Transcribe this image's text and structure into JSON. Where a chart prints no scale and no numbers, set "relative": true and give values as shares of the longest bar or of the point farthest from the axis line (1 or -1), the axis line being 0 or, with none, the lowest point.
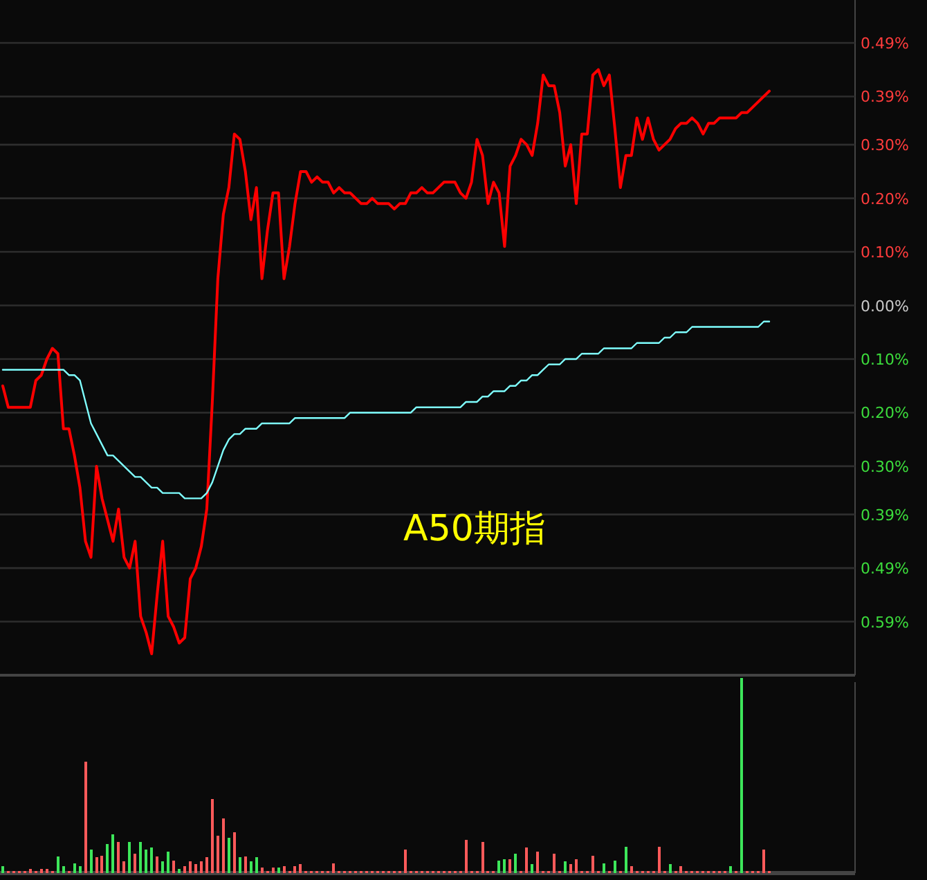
{
  "chart_data": [
    {
      "type": "line",
      "annotations": [
        "A50期指"
      ],
      "ylim": [
        -0.69,
        0.57
      ],
      "categories": [
        null,
        null,
        null,
        null,
        null,
        null,
        null,
        null,
        null,
        null,
        null,
        null,
        null,
        null,
        null,
        null,
        null,
        null,
        null,
        null,
        null,
        null,
        null,
        null,
        null,
        null,
        null,
        null,
        null,
        null,
        null,
        null,
        null,
        null,
        null,
        null,
        null,
        null,
        null,
        null,
        null,
        null,
        null,
        null,
        null,
        null,
        null,
        null,
        null,
        null,
        null,
        null,
        null,
        null,
        null,
        null,
        null,
        null,
        null,
        null,
        null,
        null,
        null,
        null,
        null,
        null,
        null,
        null,
        null,
        null,
        null,
        null,
        null,
        null,
        null,
        null,
        null,
        null,
        null,
        null,
        null,
        null,
        null,
        null,
        null,
        null,
        null,
        null,
        null,
        null,
        null,
        null,
        null,
        null,
        null,
        null,
        null,
        null,
        null,
        null,
        null,
        null,
        null,
        null,
        null,
        null,
        null,
        null,
        null,
        null,
        null,
        null,
        null,
        null,
        null,
        null,
        null,
        null,
        null,
        null,
        null,
        null,
        null,
        null,
        null,
        null,
        null,
        null,
        null,
        null,
        null,
        null,
        null,
        null,
        null,
        null,
        null,
        null,
        null,
        null
      ],
      "yticks": [
        {
          "value": 0.49,
          "label": "0.49%"
        },
        {
          "value": 0.39,
          "label": "0.39%"
        },
        {
          "value": 0.3,
          "label": "0.30%"
        },
        {
          "value": 0.2,
          "label": "0.20%"
        },
        {
          "value": 0.1,
          "label": "0.10%"
        },
        {
          "value": 0,
          "label": "0.00%"
        },
        {
          "value": -0.1,
          "label": "0.10%"
        },
        {
          "value": -0.2,
          "label": "0.20%"
        },
        {
          "value": -0.3,
          "label": "0.30%"
        },
        {
          "value": -0.39,
          "label": "0.39%"
        },
        {
          "value": -0.49,
          "label": "0.49%"
        },
        {
          "value": -0.59,
          "label": "0.59%"
        }
      ],
      "grid": "y",
      "tick_labels": "y",
      "line_style": "solid",
      "series": [
        {
          "color": "#ff0000",
          "values": [
            -0.15,
            -0.19,
            -0.19,
            -0.19,
            -0.19,
            -0.19,
            -0.14,
            -0.13,
            -0.1,
            -0.08,
            -0.09,
            -0.23,
            -0.23,
            -0.28,
            -0.34,
            -0.44,
            -0.47,
            -0.3,
            -0.36,
            -0.4,
            -0.44,
            -0.38,
            -0.47,
            -0.49,
            -0.44,
            -0.58,
            -0.61,
            -0.65,
            -0.54,
            -0.44,
            -0.58,
            -0.6,
            -0.63,
            -0.62,
            -0.51,
            -0.49,
            -0.45,
            -0.38,
            -0.18,
            0.05,
            0.17,
            0.22,
            0.32,
            0.31,
            0.25,
            0.16,
            0.22,
            0.05,
            0.14,
            0.21,
            0.21,
            0.05,
            0.11,
            0.19,
            0.25,
            0.25,
            0.23,
            0.24,
            0.23,
            0.23,
            0.21,
            0.22,
            0.21,
            0.21,
            0.2,
            0.19,
            0.19,
            0.2,
            0.19,
            0.19,
            0.19,
            0.18,
            0.19,
            0.19,
            0.21,
            0.21,
            0.22,
            0.21,
            0.21,
            0.22,
            0.23,
            0.23,
            0.23,
            0.21,
            0.2,
            0.23,
            0.31,
            0.28,
            0.19,
            0.23,
            0.21,
            0.11,
            0.26,
            0.28,
            0.31,
            0.3,
            0.28,
            0.34,
            0.43,
            0.41,
            0.41,
            0.36,
            0.26,
            0.3,
            0.19,
            0.32,
            0.32,
            0.43,
            0.44,
            0.41,
            0.43,
            0.33,
            0.22,
            0.28,
            0.28,
            0.35,
            0.31,
            0.35,
            0.31,
            0.29,
            0.3,
            0.31,
            0.33,
            0.34,
            0.34,
            0.35,
            0.34,
            0.32,
            0.34,
            0.34,
            0.35,
            0.35,
            0.35,
            0.35,
            0.36,
            0.36,
            0.37,
            0.38,
            0.39,
            0.4
          ]
        },
        {
          "color": "#7fffff",
          "values": [
            -0.12,
            -0.12,
            -0.12,
            -0.12,
            -0.12,
            -0.12,
            -0.12,
            -0.12,
            -0.12,
            -0.12,
            -0.12,
            -0.12,
            -0.13,
            -0.13,
            -0.14,
            -0.18,
            -0.22,
            -0.24,
            -0.26,
            -0.28,
            -0.28,
            -0.29,
            -0.3,
            -0.31,
            -0.32,
            -0.32,
            -0.33,
            -0.34,
            -0.34,
            -0.35,
            -0.35,
            -0.35,
            -0.35,
            -0.36,
            -0.36,
            -0.36,
            -0.36,
            -0.35,
            -0.33,
            -0.3,
            -0.27,
            -0.25,
            -0.24,
            -0.24,
            -0.23,
            -0.23,
            -0.23,
            -0.22,
            -0.22,
            -0.22,
            -0.22,
            -0.22,
            -0.22,
            -0.21,
            -0.21,
            -0.21,
            -0.21,
            -0.21,
            -0.21,
            -0.21,
            -0.21,
            -0.21,
            -0.21,
            -0.2,
            -0.2,
            -0.2,
            -0.2,
            -0.2,
            -0.2,
            -0.2,
            -0.2,
            -0.2,
            -0.2,
            -0.2,
            -0.2,
            -0.19,
            -0.19,
            -0.19,
            -0.19,
            -0.19,
            -0.19,
            -0.19,
            -0.19,
            -0.19,
            -0.18,
            -0.18,
            -0.18,
            -0.17,
            -0.17,
            -0.16,
            -0.16,
            -0.16,
            -0.15,
            -0.15,
            -0.14,
            -0.14,
            -0.13,
            -0.13,
            -0.12,
            -0.11,
            -0.11,
            -0.11,
            -0.1,
            -0.1,
            -0.1,
            -0.09,
            -0.09,
            -0.09,
            -0.09,
            -0.08,
            -0.08,
            -0.08,
            -0.08,
            -0.08,
            -0.08,
            -0.07,
            -0.07,
            -0.07,
            -0.07,
            -0.07,
            -0.06,
            -0.06,
            -0.05,
            -0.05,
            -0.05,
            -0.04,
            -0.04,
            -0.04,
            -0.04,
            -0.04,
            -0.04,
            -0.04,
            -0.04,
            -0.04,
            -0.04,
            -0.04,
            -0.04,
            -0.04,
            -0.03,
            -0.03
          ]
        }
      ]
    },
    {
      "type": "bar",
      "relative": true,
      "categories": [
        null,
        null,
        null,
        null,
        null,
        null,
        null,
        null,
        null,
        null,
        null,
        null,
        null,
        null,
        null,
        null,
        null,
        null,
        null,
        null,
        null,
        null,
        null,
        null,
        null,
        null,
        null,
        null,
        null,
        null,
        null,
        null,
        null,
        null,
        null,
        null,
        null,
        null,
        null,
        null,
        null,
        null,
        null,
        null,
        null,
        null,
        null,
        null,
        null,
        null,
        null,
        null,
        null,
        null,
        null,
        null,
        null,
        null,
        null,
        null,
        null,
        null,
        null,
        null,
        null,
        null,
        null,
        null,
        null,
        null,
        null,
        null,
        null,
        null,
        null,
        null,
        null,
        null,
        null,
        null,
        null,
        null,
        null,
        null,
        null,
        null,
        null,
        null,
        null,
        null,
        null,
        null,
        null,
        null,
        null,
        null,
        null,
        null,
        null,
        null,
        null,
        null,
        null,
        null,
        null,
        null,
        null,
        null,
        null,
        null,
        null,
        null,
        null,
        null,
        null,
        null,
        null,
        null,
        null,
        null,
        null,
        null,
        null,
        null,
        null,
        null,
        null,
        null,
        null,
        null,
        null,
        null,
        null,
        null,
        null,
        null,
        null,
        null,
        null,
        null
      ],
      "values": [
        0.035,
        0.01,
        0.01,
        0.01,
        0.01,
        0.02,
        0.01,
        0.02,
        0.02,
        0.01,
        0.085,
        0.035,
        0.01,
        0.05,
        0.035,
        0.57,
        0.12,
        0.08,
        0.09,
        0.15,
        0.2,
        0.16,
        0.06,
        0.16,
        0.1,
        0.16,
        0.12,
        0.13,
        0.085,
        0.06,
        0.11,
        0.065,
        0.02,
        0.035,
        0.06,
        0.045,
        0.06,
        0.08,
        0.38,
        0.19,
        0.28,
        0.18,
        0.21,
        0.08,
        0.085,
        0.06,
        0.08,
        0.03,
        0.01,
        0.03,
        0.03,
        0.035,
        0.01,
        0.035,
        0.045,
        0.01,
        0.01,
        0.01,
        0.01,
        0.01,
        0.05,
        0.01,
        0.01,
        0.01,
        0.01,
        0.01,
        0.01,
        0.01,
        0.01,
        0.01,
        0.01,
        0.01,
        0.01,
        0.12,
        0.01,
        0.01,
        0.01,
        0.01,
        0.01,
        0.01,
        0.01,
        0.01,
        0.01,
        0.01,
        0.17,
        0.01,
        0.01,
        0.16,
        0.01,
        0.01,
        0.065,
        0.07,
        0.07,
        0.1,
        0.01,
        0.13,
        0.045,
        0.11,
        0.01,
        0.01,
        0.1,
        0.01,
        0.06,
        0.045,
        0.07,
        0.01,
        0.01,
        0.09,
        0.01,
        0.05,
        0.01,
        0.065,
        0.01,
        0.135,
        0.035,
        0.01,
        0.01,
        0.01,
        0.01,
        0.135,
        0.01,
        0.045,
        0.01,
        0.035,
        0.01,
        0.01,
        0.01,
        0.01,
        0.01,
        0.01,
        0.01,
        0.01,
        0.035,
        0.01,
        1,
        0.01,
        0.01,
        0.01,
        0.12,
        0.01
      ],
      "colors": [
        "#3de65a",
        "#ff5a5a",
        "#ff5a5a",
        "#ff5a5a",
        "#ff5a5a",
        "#ff5a5a",
        "#ff5a5a",
        "#ff5a5a",
        "#ff5a5a",
        "#ff5a5a",
        "#3de65a",
        "#3de65a",
        "#ff5a5a",
        "#3de65a",
        "#3de65a",
        "#ff5a5a",
        "#3de65a",
        "#ff5a5a",
        "#ff5a5a",
        "#3de65a",
        "#3de65a",
        "#ff5a5a",
        "#ff5a5a",
        "#3de65a",
        "#ff5a5a",
        "#3de65a",
        "#3de65a",
        "#3de65a",
        "#ff5a5a",
        "#3de65a",
        "#3de65a",
        "#ff5a5a",
        "#3de65a",
        "#ff5a5a",
        "#ff5a5a",
        "#ff5a5a",
        "#ff5a5a",
        "#ff5a5a",
        "#ff5a5a",
        "#ff5a5a",
        "#ff5a5a",
        "#3de65a",
        "#ff5a5a",
        "#3de65a",
        "#ff5a5a",
        "#3de65a",
        "#3de65a",
        "#ff5a5a",
        "#ff5a5a",
        "#ff5a5a",
        "#3de65a",
        "#ff5a5a",
        "#ff5a5a",
        "#ff5a5a",
        "#ff5a5a",
        "#ff5a5a",
        "#ff5a5a",
        "#ff5a5a",
        "#ff5a5a",
        "#ff5a5a",
        "#ff5a5a",
        "#ff5a5a",
        "#ff5a5a",
        "#ff5a5a",
        "#ff5a5a",
        "#ff5a5a",
        "#ff5a5a",
        "#ff5a5a",
        "#ff5a5a",
        "#ff5a5a",
        "#ff5a5a",
        "#ff5a5a",
        "#ff5a5a",
        "#ff5a5a",
        "#ff5a5a",
        "#ff5a5a",
        "#ff5a5a",
        "#ff5a5a",
        "#ff5a5a",
        "#ff5a5a",
        "#ff5a5a",
        "#ff5a5a",
        "#ff5a5a",
        "#ff5a5a",
        "#ff5a5a",
        "#ff5a5a",
        "#ff5a5a",
        "#ff5a5a",
        "#ff5a5a",
        "#ff5a5a",
        "#3de65a",
        "#3de65a",
        "#ff5a5a",
        "#3de65a",
        "#ff5a5a",
        "#ff5a5a",
        "#3de65a",
        "#ff5a5a",
        "#ff5a5a",
        "#ff5a5a",
        "#ff5a5a",
        "#ff5a5a",
        "#3de65a",
        "#ff5a5a",
        "#ff5a5a",
        "#ff5a5a",
        "#ff5a5a",
        "#ff5a5a",
        "#ff5a5a",
        "#3de65a",
        "#ff5a5a",
        "#3de65a",
        "#ff5a5a",
        "#3de65a",
        "#ff5a5a",
        "#ff5a5a",
        "#ff5a5a",
        "#ff5a5a",
        "#ff5a5a",
        "#ff5a5a",
        "#ff5a5a",
        "#3de65a",
        "#ff5a5a",
        "#ff5a5a",
        "#ff5a5a",
        "#ff5a5a",
        "#ff5a5a",
        "#ff5a5a",
        "#ff5a5a",
        "#ff5a5a",
        "#ff5a5a",
        "#ff5a5a",
        "#3de65a",
        "#ff5a5a",
        "#3de65a",
        "#ff5a5a",
        "#ff5a5a",
        "#ff5a5a",
        "#ff5a5a",
        "#ff5a5a"
      ]
    }
  ]
}
